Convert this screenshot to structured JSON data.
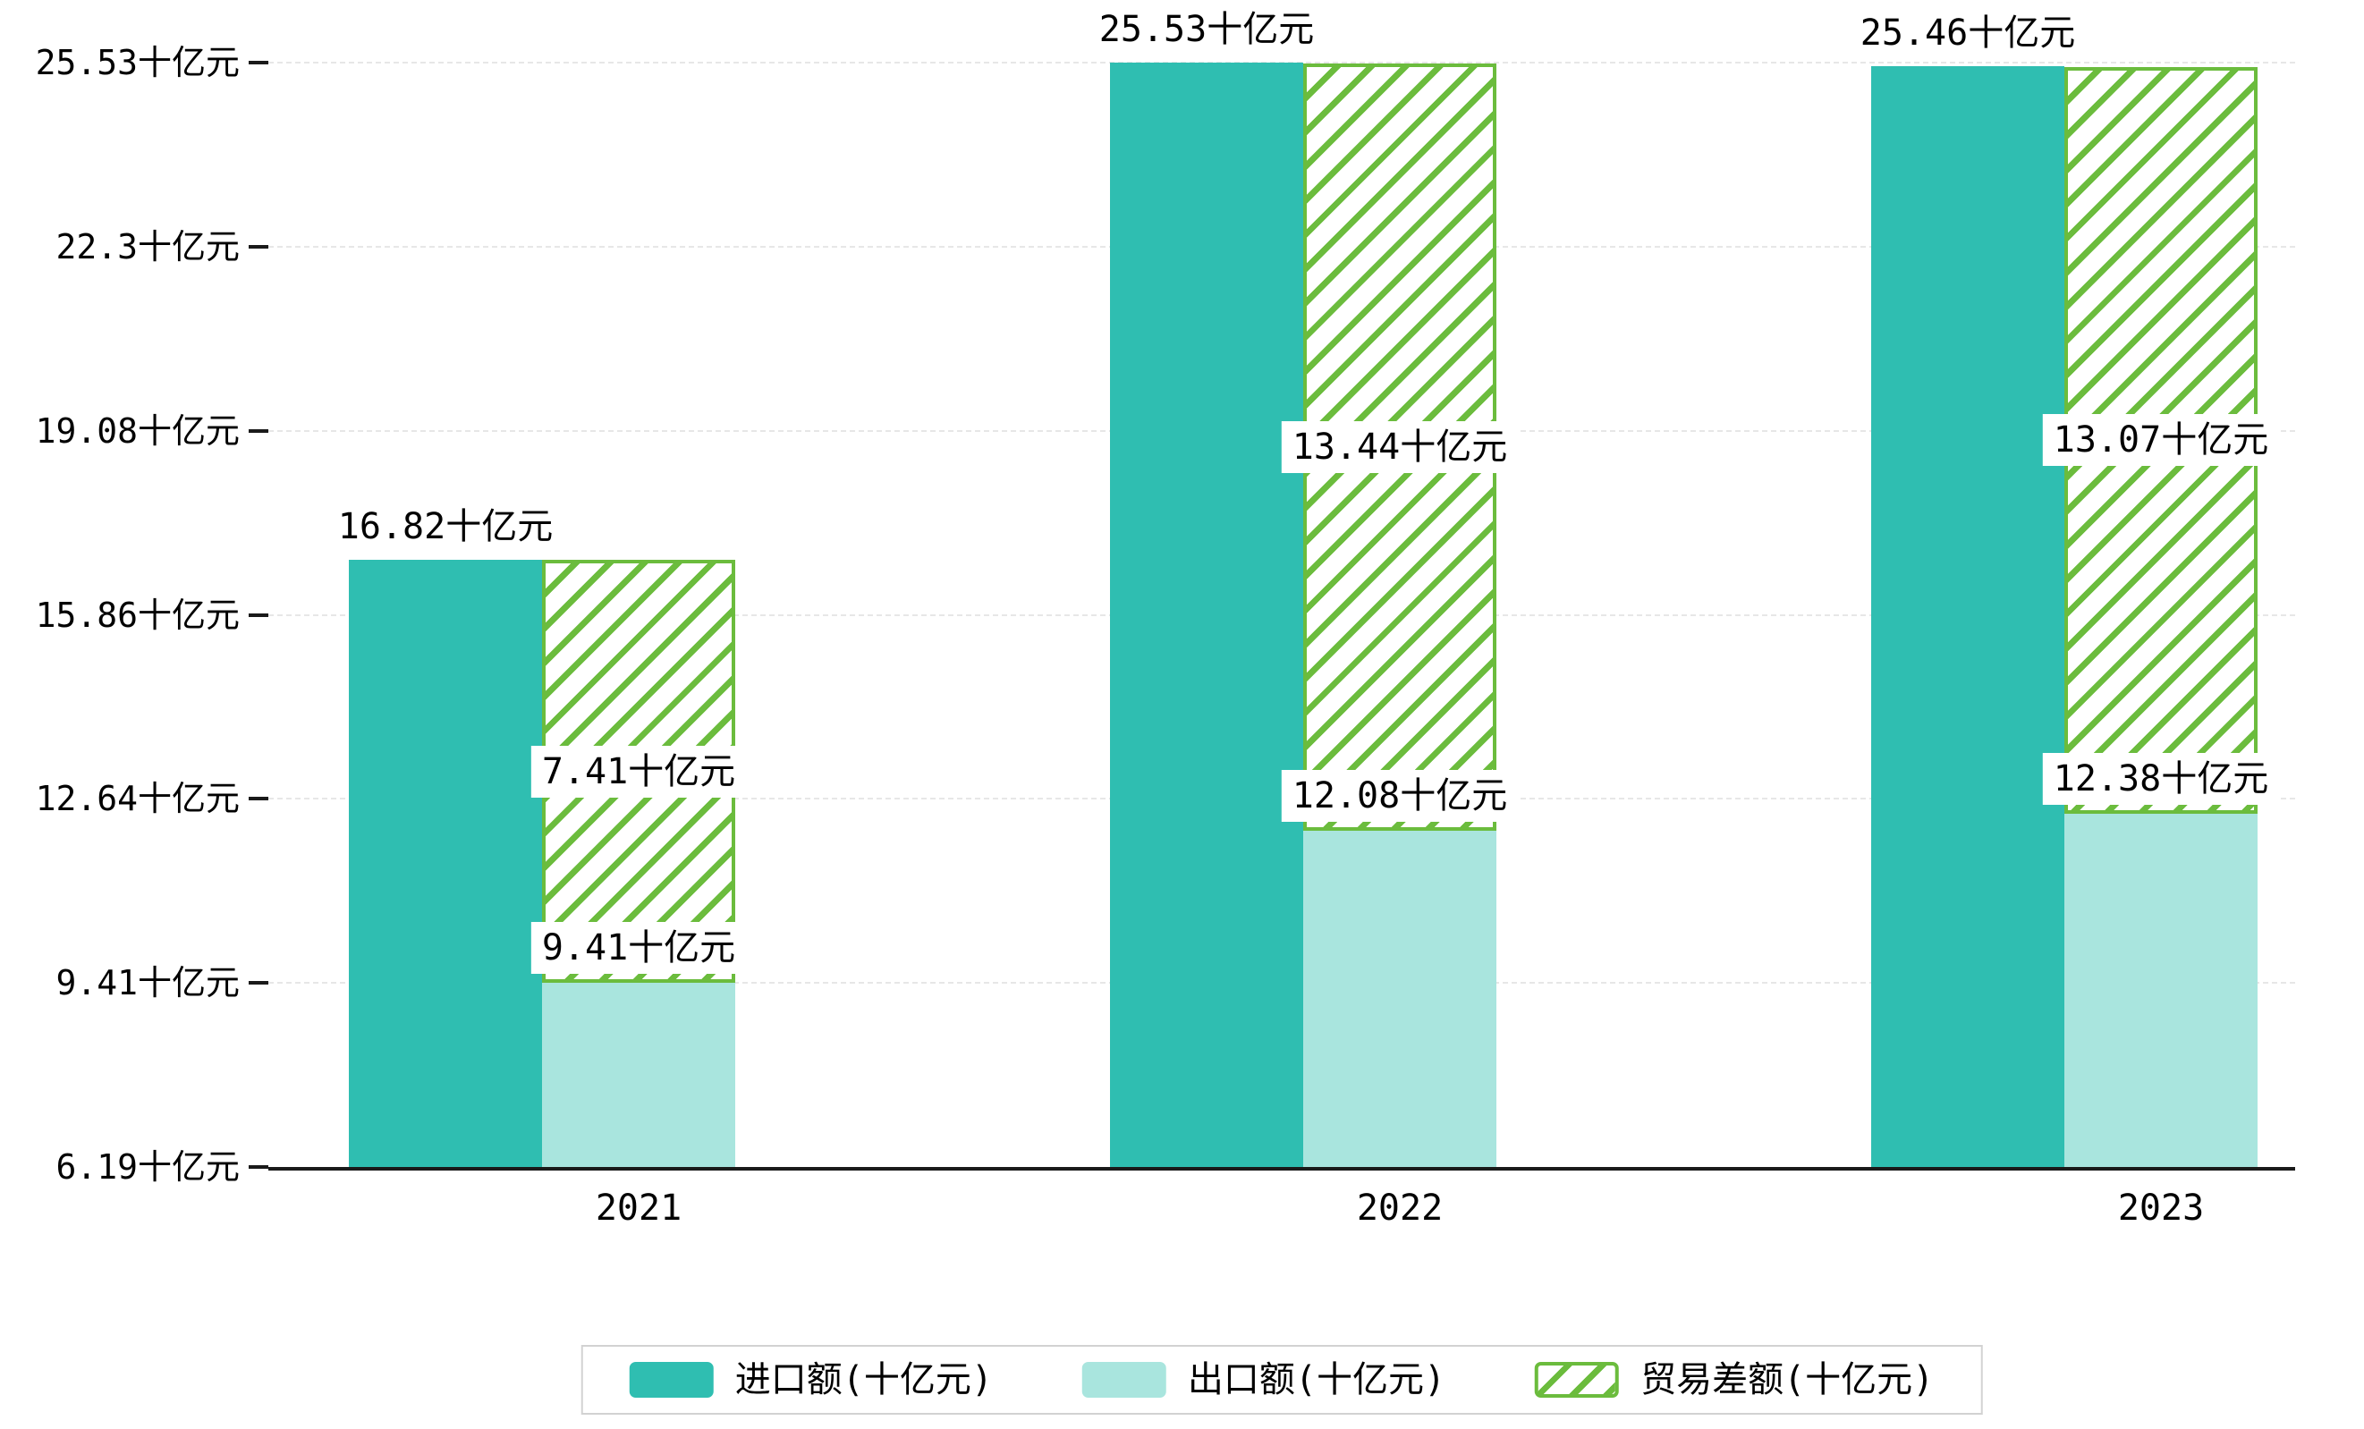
{
  "chart_data": {
    "type": "bar",
    "unit": "十亿元",
    "categories": [
      "2021",
      "2022",
      "2023"
    ],
    "series": [
      {
        "name": "进口额(十亿元)",
        "role": "import",
        "pattern": "solid",
        "color": "#2fbeb1",
        "values": [
          16.82,
          25.53,
          25.46
        ],
        "labels": [
          "16.82十亿元",
          "25.53十亿元",
          "25.46十亿元"
        ]
      },
      {
        "name": "出口额(十亿元)",
        "role": "export",
        "pattern": "solid",
        "color": "#a9e5de",
        "values": [
          9.41,
          12.08,
          12.38
        ],
        "labels": [
          "9.41十亿元",
          "12.08十亿元",
          "12.38十亿元"
        ]
      },
      {
        "name": "贸易差额(十亿元)",
        "role": "trade-balance",
        "pattern": "hatch",
        "color": "#6bbc3d",
        "stacked_on": "出口额(十亿元)",
        "values": [
          7.41,
          13.44,
          13.07
        ],
        "labels": [
          "7.41十亿元",
          "13.44十亿元",
          "13.07十亿元"
        ]
      }
    ],
    "y_ticks": [
      {
        "value": 6.19,
        "label": "6.19十亿元"
      },
      {
        "value": 9.41,
        "label": "9.41十亿元"
      },
      {
        "value": 12.64,
        "label": "12.64十亿元"
      },
      {
        "value": 15.86,
        "label": "15.86十亿元"
      },
      {
        "value": 19.08,
        "label": "19.08十亿元"
      },
      {
        "value": 22.3,
        "label": "22.3十亿元"
      },
      {
        "value": 25.53,
        "label": "25.53十亿元"
      }
    ],
    "ylim": [
      6.19,
      25.53
    ],
    "grid": true,
    "legend_position": "bottom"
  },
  "legend": {
    "items": [
      {
        "label": "进口额(十亿元)",
        "color": "#2fbeb1",
        "pattern": "solid"
      },
      {
        "label": "出口额(十亿元)",
        "color": "#a9e5de",
        "pattern": "solid"
      },
      {
        "label": "贸易差额(十亿元)",
        "color": "#6bbc3d",
        "pattern": "hatch"
      }
    ]
  },
  "colors": {
    "import": "#2fbeb1",
    "export": "#a9e5de",
    "balance_green": "#6bbc3d",
    "axis": "#1a1a1a",
    "grid": "#e7e7e7",
    "label_text": "#000000",
    "legend_border": "#d2d2d2",
    "background": "#ffffff"
  }
}
